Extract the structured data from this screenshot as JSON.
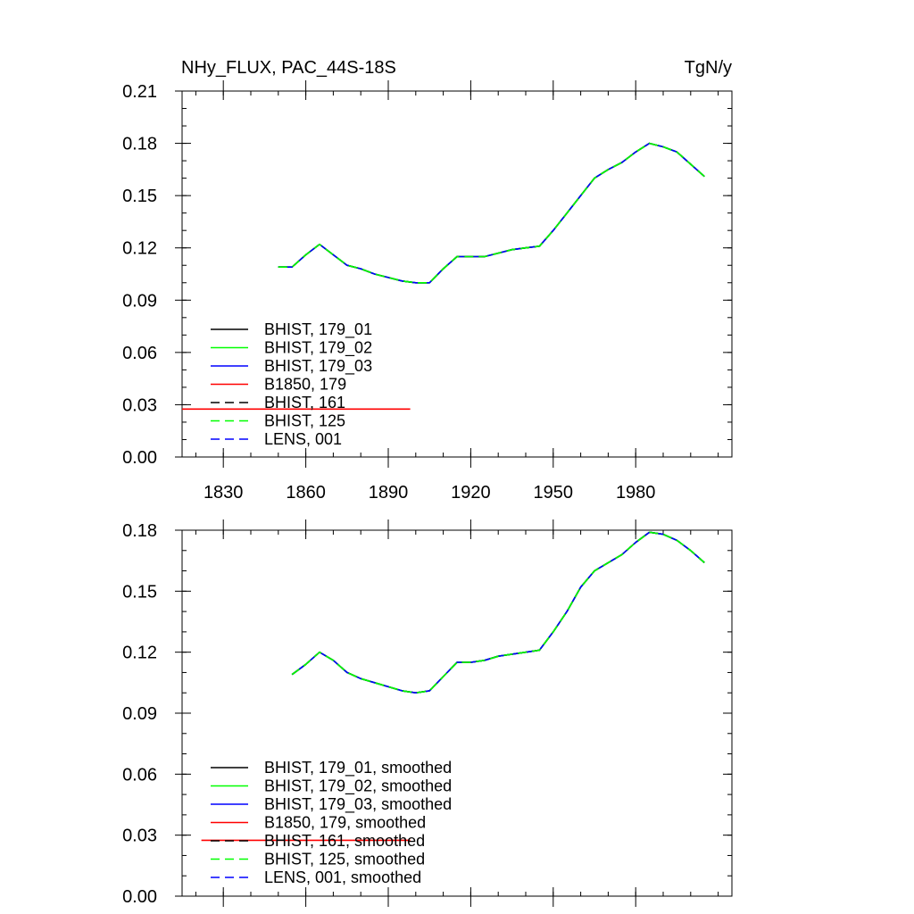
{
  "chart_data": [
    {
      "type": "line",
      "title_left": "NHy_FLUX, PAC_44S-18S",
      "title_right": "TgN/y",
      "xlim": [
        1815,
        2015
      ],
      "ylim": [
        0,
        0.21
      ],
      "xticks": [
        1830,
        1860,
        1890,
        1920,
        1950,
        1980
      ],
      "xtick_labels": [
        "1830",
        "1860",
        "1890",
        "1920",
        "1950",
        "1980"
      ],
      "yticks": [
        0,
        0.03,
        0.06,
        0.09,
        0.12,
        0.15,
        0.18,
        0.21
      ],
      "ytick_labels": [
        "0.00",
        "0.03",
        "0.06",
        "0.09",
        "0.12",
        "0.15",
        "0.18",
        "0.21"
      ],
      "legend_position": "lower-left",
      "series": [
        {
          "name": "BHIST, 179_01",
          "color": "#000000",
          "dash": "solid",
          "x": [
            1850,
            1855,
            1860,
            1865,
            1870,
            1875,
            1880,
            1885,
            1890,
            1895,
            1900,
            1905,
            1910,
            1915,
            1920,
            1925,
            1930,
            1935,
            1940,
            1945,
            1950,
            1955,
            1960,
            1965,
            1970,
            1975,
            1980,
            1985,
            1990,
            1995,
            2000,
            2005
          ],
          "y": [
            0.109,
            0.109,
            0.116,
            0.122,
            0.116,
            0.11,
            0.108,
            0.105,
            0.103,
            0.101,
            0.1,
            0.1,
            0.108,
            0.115,
            0.115,
            0.115,
            0.117,
            0.119,
            0.12,
            0.121,
            0.13,
            0.14,
            0.15,
            0.16,
            0.165,
            0.169,
            0.175,
            0.18,
            0.178,
            0.175,
            0.168,
            0.161
          ]
        },
        {
          "name": "BHIST, 179_02",
          "color": "#00ff00",
          "dash": "solid",
          "x": [
            1850,
            1855,
            1860,
            1865,
            1870,
            1875,
            1880,
            1885,
            1890,
            1895,
            1900,
            1905,
            1910,
            1915,
            1920,
            1925,
            1930,
            1935,
            1940,
            1945,
            1950,
            1955,
            1960,
            1965,
            1970,
            1975,
            1980,
            1985,
            1990,
            1995,
            2000,
            2005
          ],
          "y": [
            0.109,
            0.109,
            0.116,
            0.122,
            0.116,
            0.11,
            0.108,
            0.105,
            0.103,
            0.101,
            0.1,
            0.1,
            0.108,
            0.115,
            0.115,
            0.115,
            0.117,
            0.119,
            0.12,
            0.121,
            0.13,
            0.14,
            0.15,
            0.16,
            0.165,
            0.169,
            0.175,
            0.18,
            0.178,
            0.175,
            0.168,
            0.161
          ]
        },
        {
          "name": "BHIST, 179_03",
          "color": "#0000ff",
          "dash": "solid",
          "x": [
            1850,
            1855,
            1860,
            1865,
            1870,
            1875,
            1880,
            1885,
            1890,
            1895,
            1900,
            1905,
            1910,
            1915,
            1920,
            1925,
            1930,
            1935,
            1940,
            1945,
            1950,
            1955,
            1960,
            1965,
            1970,
            1975,
            1980,
            1985,
            1990,
            1995,
            2000,
            2005
          ],
          "y": [
            0.109,
            0.109,
            0.116,
            0.122,
            0.116,
            0.11,
            0.108,
            0.105,
            0.103,
            0.101,
            0.1,
            0.1,
            0.108,
            0.115,
            0.115,
            0.115,
            0.117,
            0.119,
            0.12,
            0.121,
            0.13,
            0.14,
            0.15,
            0.16,
            0.165,
            0.169,
            0.175,
            0.18,
            0.178,
            0.175,
            0.168,
            0.161
          ]
        },
        {
          "name": "B1850, 179",
          "color": "#ff0000",
          "dash": "solid",
          "x": [
            1815,
            1898
          ],
          "y": [
            0.0275,
            0.0275
          ]
        },
        {
          "name": "BHIST, 161",
          "color": "#000000",
          "dash": "dashed",
          "x": [
            1850,
            1855,
            1860,
            1865,
            1870,
            1875,
            1880,
            1885,
            1890,
            1895,
            1900,
            1905,
            1910,
            1915,
            1920,
            1925,
            1930,
            1935,
            1940,
            1945,
            1950,
            1955,
            1960,
            1965,
            1970,
            1975,
            1980,
            1985,
            1990,
            1995,
            2000,
            2005
          ],
          "y": [
            0.109,
            0.109,
            0.116,
            0.122,
            0.116,
            0.11,
            0.108,
            0.105,
            0.103,
            0.101,
            0.1,
            0.1,
            0.108,
            0.115,
            0.115,
            0.115,
            0.117,
            0.119,
            0.12,
            0.121,
            0.13,
            0.14,
            0.15,
            0.16,
            0.165,
            0.169,
            0.175,
            0.18,
            0.178,
            0.175,
            0.168,
            0.161
          ]
        },
        {
          "name": "BHIST, 125",
          "color": "#00ff00",
          "dash": "dashed",
          "x": [
            1850,
            1855,
            1860,
            1865,
            1870,
            1875,
            1880,
            1885,
            1890,
            1895,
            1900,
            1905,
            1910,
            1915,
            1920,
            1925,
            1930,
            1935,
            1940,
            1945,
            1950,
            1955,
            1960,
            1965,
            1970,
            1975,
            1980,
            1985,
            1990,
            1995,
            2000,
            2005
          ],
          "y": [
            0.109,
            0.109,
            0.116,
            0.122,
            0.116,
            0.11,
            0.108,
            0.105,
            0.103,
            0.101,
            0.1,
            0.1,
            0.108,
            0.115,
            0.115,
            0.115,
            0.117,
            0.119,
            0.12,
            0.121,
            0.13,
            0.14,
            0.15,
            0.16,
            0.165,
            0.169,
            0.175,
            0.18,
            0.178,
            0.175,
            0.168,
            0.161
          ]
        },
        {
          "name": "LENS, 001",
          "color": "#0000ff",
          "dash": "dashed",
          "x": [],
          "y": []
        }
      ]
    },
    {
      "type": "line",
      "xlim": [
        1815,
        2015
      ],
      "ylim": [
        0,
        0.18
      ],
      "xticks": [
        1830,
        1860,
        1890,
        1920,
        1950,
        1980
      ],
      "yticks": [
        0,
        0.03,
        0.06,
        0.09,
        0.12,
        0.15,
        0.18
      ],
      "ytick_labels": [
        "0.00",
        "0.03",
        "0.06",
        "0.09",
        "0.12",
        "0.15",
        "0.18"
      ],
      "legend_position": "lower-left",
      "series": [
        {
          "name": "BHIST, 179_01, smoothed",
          "color": "#000000",
          "dash": "solid",
          "x": [
            1855,
            1860,
            1865,
            1870,
            1875,
            1880,
            1885,
            1890,
            1895,
            1900,
            1905,
            1910,
            1915,
            1920,
            1925,
            1930,
            1935,
            1940,
            1945,
            1950,
            1955,
            1960,
            1965,
            1970,
            1975,
            1980,
            1985,
            1990,
            1995,
            2000,
            2005
          ],
          "y": [
            0.109,
            0.114,
            0.12,
            0.116,
            0.11,
            0.107,
            0.105,
            0.103,
            0.101,
            0.1,
            0.101,
            0.108,
            0.115,
            0.115,
            0.116,
            0.118,
            0.119,
            0.12,
            0.121,
            0.13,
            0.14,
            0.152,
            0.16,
            0.164,
            0.168,
            0.174,
            0.179,
            0.178,
            0.175,
            0.17,
            0.164
          ]
        },
        {
          "name": "BHIST, 179_02, smoothed",
          "color": "#00ff00",
          "dash": "solid",
          "x": [
            1855,
            1860,
            1865,
            1870,
            1875,
            1880,
            1885,
            1890,
            1895,
            1900,
            1905,
            1910,
            1915,
            1920,
            1925,
            1930,
            1935,
            1940,
            1945,
            1950,
            1955,
            1960,
            1965,
            1970,
            1975,
            1980,
            1985,
            1990,
            1995,
            2000,
            2005
          ],
          "y": [
            0.109,
            0.114,
            0.12,
            0.116,
            0.11,
            0.107,
            0.105,
            0.103,
            0.101,
            0.1,
            0.101,
            0.108,
            0.115,
            0.115,
            0.116,
            0.118,
            0.119,
            0.12,
            0.121,
            0.13,
            0.14,
            0.152,
            0.16,
            0.164,
            0.168,
            0.174,
            0.179,
            0.178,
            0.175,
            0.17,
            0.164
          ]
        },
        {
          "name": "BHIST, 179_03, smoothed",
          "color": "#0000ff",
          "dash": "solid",
          "x": [
            1855,
            1860,
            1865,
            1870,
            1875,
            1880,
            1885,
            1890,
            1895,
            1900,
            1905,
            1910,
            1915,
            1920,
            1925,
            1930,
            1935,
            1940,
            1945,
            1950,
            1955,
            1960,
            1965,
            1970,
            1975,
            1980,
            1985,
            1990,
            1995,
            2000,
            2005
          ],
          "y": [
            0.109,
            0.114,
            0.12,
            0.116,
            0.11,
            0.107,
            0.105,
            0.103,
            0.101,
            0.1,
            0.101,
            0.108,
            0.115,
            0.115,
            0.116,
            0.118,
            0.119,
            0.12,
            0.121,
            0.13,
            0.14,
            0.152,
            0.16,
            0.164,
            0.168,
            0.174,
            0.179,
            0.178,
            0.175,
            0.17,
            0.164
          ]
        },
        {
          "name": "B1850, 179, smoothed",
          "color": "#ff0000",
          "dash": "solid",
          "x": [
            1822,
            1898
          ],
          "y": [
            0.0275,
            0.0275
          ]
        },
        {
          "name": "BHIST, 161, smoothed",
          "color": "#000000",
          "dash": "dashed",
          "x": [
            1855,
            1860,
            1865,
            1870,
            1875,
            1880,
            1885,
            1890,
            1895,
            1900,
            1905,
            1910,
            1915,
            1920,
            1925,
            1930,
            1935,
            1940,
            1945,
            1950,
            1955,
            1960,
            1965,
            1970,
            1975,
            1980,
            1985,
            1990,
            1995,
            2000,
            2005
          ],
          "y": [
            0.109,
            0.114,
            0.12,
            0.116,
            0.11,
            0.107,
            0.105,
            0.103,
            0.101,
            0.1,
            0.101,
            0.108,
            0.115,
            0.115,
            0.116,
            0.118,
            0.119,
            0.12,
            0.121,
            0.13,
            0.14,
            0.152,
            0.16,
            0.164,
            0.168,
            0.174,
            0.179,
            0.178,
            0.175,
            0.17,
            0.164
          ]
        },
        {
          "name": "BHIST, 125, smoothed",
          "color": "#00ff00",
          "dash": "dashed",
          "x": [
            1855,
            1860,
            1865,
            1870,
            1875,
            1880,
            1885,
            1890,
            1895,
            1900,
            1905,
            1910,
            1915,
            1920,
            1925,
            1930,
            1935,
            1940,
            1945,
            1950,
            1955,
            1960,
            1965,
            1970,
            1975,
            1980,
            1985,
            1990,
            1995,
            2000,
            2005
          ],
          "y": [
            0.109,
            0.114,
            0.12,
            0.116,
            0.11,
            0.107,
            0.105,
            0.103,
            0.101,
            0.1,
            0.101,
            0.108,
            0.115,
            0.115,
            0.116,
            0.118,
            0.119,
            0.12,
            0.121,
            0.13,
            0.14,
            0.152,
            0.16,
            0.164,
            0.168,
            0.174,
            0.179,
            0.178,
            0.175,
            0.17,
            0.164
          ]
        },
        {
          "name": "LENS, 001, smoothed",
          "color": "#0000ff",
          "dash": "dashed",
          "x": [],
          "y": []
        }
      ]
    }
  ]
}
